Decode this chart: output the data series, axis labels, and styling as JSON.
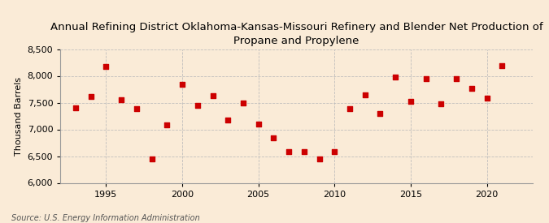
{
  "title": "Annual Refining District Oklahoma-Kansas-Missouri Refinery and Blender Net Production of\nPropane and Propylene",
  "ylabel": "Thousand Barrels",
  "source": "Source: U.S. Energy Information Administration",
  "background_color": "#faebd7",
  "plot_background_color": "#faebd7",
  "marker_color": "#cc0000",
  "years": [
    1993,
    1994,
    1995,
    1996,
    1997,
    1998,
    1999,
    2000,
    2001,
    2002,
    2003,
    2004,
    2005,
    2006,
    2007,
    2008,
    2009,
    2010,
    2011,
    2012,
    2013,
    2014,
    2015,
    2016,
    2017,
    2018,
    2019,
    2020,
    2021
  ],
  "values": [
    7400,
    7620,
    8170,
    7550,
    7380,
    6450,
    7080,
    7840,
    7450,
    7630,
    7170,
    7490,
    7100,
    6840,
    6580,
    6580,
    6440,
    6580,
    7380,
    7650,
    7300,
    7980,
    7530,
    7950,
    7470,
    7950,
    7770,
    7590,
    8190
  ],
  "ylim": [
    6000,
    8500
  ],
  "yticks": [
    6000,
    6500,
    7000,
    7500,
    8000,
    8500
  ],
  "xlim": [
    1992,
    2023
  ],
  "xticks": [
    1995,
    2000,
    2005,
    2010,
    2015,
    2020
  ],
  "grid_color": "#bbbbbb",
  "title_fontsize": 9.5,
  "label_fontsize": 8,
  "tick_fontsize": 8,
  "source_fontsize": 7
}
